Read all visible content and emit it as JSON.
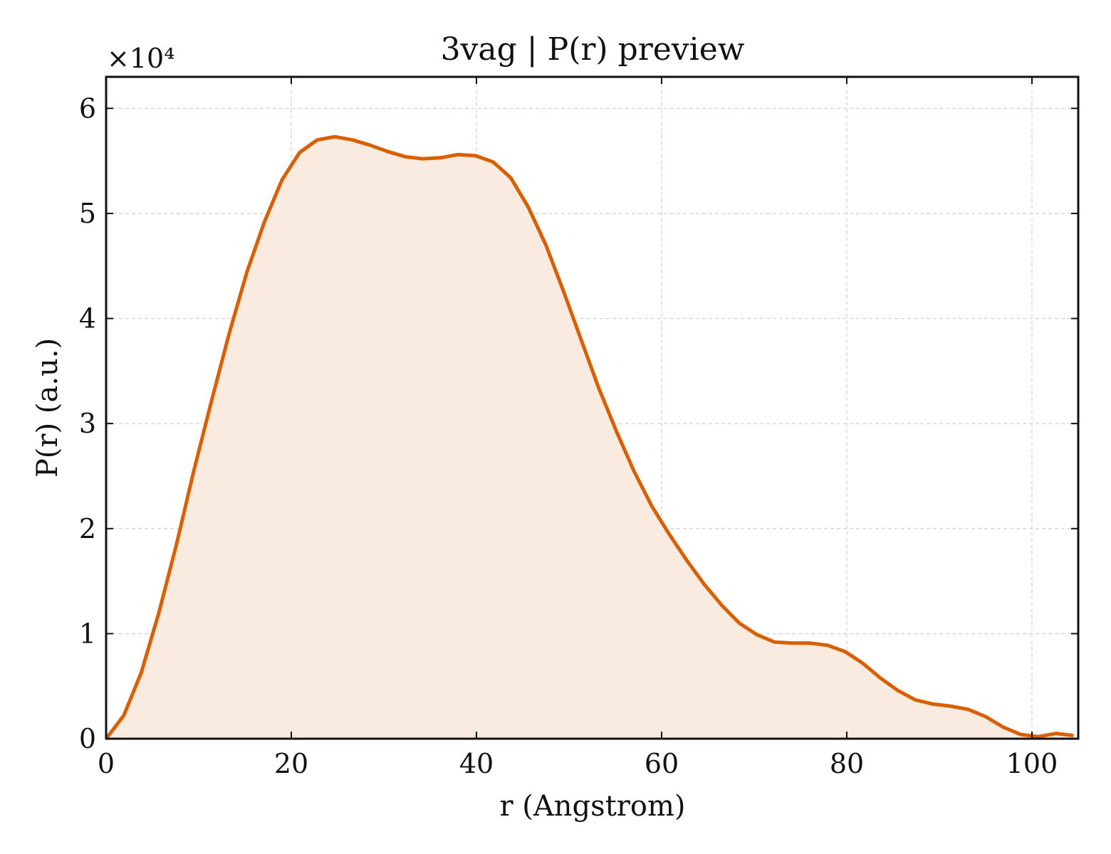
{
  "chart_data": {
    "type": "area",
    "title": "3vag | P(r) preview",
    "xlabel": "r (Angstrom)",
    "ylabel": "P(r) (a.u.)",
    "y_scale_label": "×10⁴",
    "xlim": [
      0,
      105
    ],
    "ylim": [
      0,
      6.3
    ],
    "x_ticks": [
      0,
      20,
      40,
      60,
      80,
      100
    ],
    "x_tick_labels": [
      "0",
      "20",
      "40",
      "60",
      "80",
      "100"
    ],
    "y_ticks": [
      0,
      1,
      2,
      3,
      4,
      5,
      6
    ],
    "y_tick_labels": [
      "0",
      "1",
      "2",
      "3",
      "4",
      "5",
      "6"
    ],
    "grid": true,
    "legend": "none",
    "colors": {
      "line": "#d95f02",
      "fill": "#f9ebdf",
      "grid": "#d0d0d0",
      "axis": "#111111"
    },
    "series": [
      {
        "x": [
          0,
          1.9,
          3.8,
          5.7,
          7.6,
          9.5,
          11.4,
          13.3,
          15.2,
          17.1,
          19.0,
          20.9,
          22.8,
          24.7,
          26.6,
          28.5,
          30.4,
          32.3,
          34.2,
          36.1,
          38.0,
          39.9,
          41.8,
          43.7,
          45.6,
          47.5,
          49.4,
          51.3,
          53.2,
          55.1,
          57.0,
          58.9,
          60.8,
          62.7,
          64.6,
          66.5,
          68.4,
          70.3,
          72.2,
          74.1,
          76.0,
          77.9,
          79.8,
          81.7,
          83.6,
          85.5,
          87.4,
          89.3,
          91.2,
          93.1,
          95.0,
          96.9,
          98.8,
          100.7,
          102.6,
          104.5
        ],
        "y": [
          0.0,
          0.22,
          0.63,
          1.2,
          1.85,
          2.56,
          3.22,
          3.86,
          4.44,
          4.92,
          5.32,
          5.58,
          5.7,
          5.73,
          5.7,
          5.65,
          5.59,
          5.54,
          5.52,
          5.53,
          5.56,
          5.55,
          5.49,
          5.34,
          5.06,
          4.7,
          4.26,
          3.8,
          3.34,
          2.93,
          2.55,
          2.22,
          1.95,
          1.7,
          1.47,
          1.27,
          1.1,
          0.99,
          0.92,
          0.91,
          0.91,
          0.89,
          0.83,
          0.72,
          0.58,
          0.46,
          0.37,
          0.33,
          0.31,
          0.28,
          0.21,
          0.11,
          0.04,
          0.02,
          0.05,
          0.03
        ]
      }
    ]
  }
}
